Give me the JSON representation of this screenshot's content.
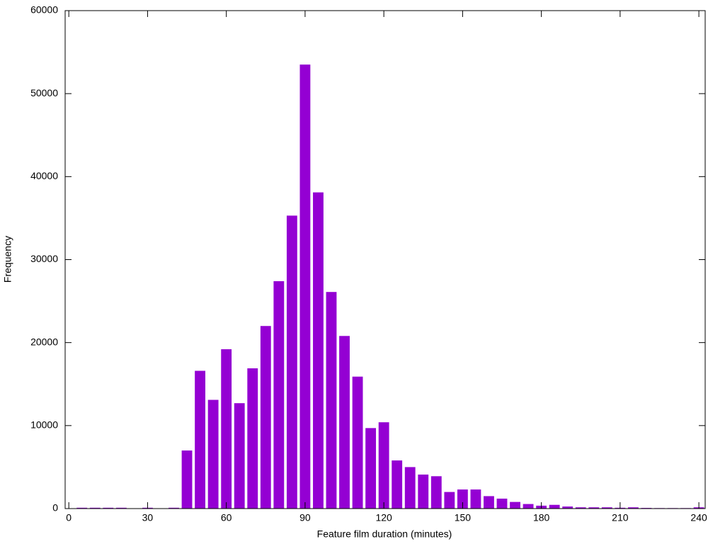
{
  "chart_data": {
    "type": "bar",
    "xlabel": "Feature film duration (minutes)",
    "ylabel": "Frequency",
    "x": [
      5,
      10,
      15,
      20,
      25,
      30,
      35,
      40,
      45,
      50,
      55,
      60,
      65,
      70,
      75,
      80,
      85,
      90,
      95,
      100,
      105,
      110,
      115,
      120,
      125,
      130,
      135,
      140,
      145,
      150,
      155,
      160,
      165,
      170,
      175,
      180,
      185,
      190,
      195,
      200,
      205,
      210,
      215,
      220,
      225,
      230,
      235,
      240
    ],
    "values": [
      100,
      100,
      100,
      100,
      0,
      100,
      0,
      100,
      7000,
      16600,
      13100,
      19200,
      12700,
      16900,
      22000,
      27400,
      35300,
      53500,
      38100,
      26100,
      20800,
      15900,
      9700,
      10400,
      5800,
      5000,
      4100,
      3900,
      2000,
      2300,
      2300,
      1500,
      1200,
      800,
      550,
      350,
      450,
      250,
      150,
      150,
      150,
      100,
      150,
      80,
      60,
      60,
      60,
      150
    ],
    "color": "#9400d3",
    "xlim": [
      -1.4,
      242.4
    ],
    "xticks": [
      0,
      30,
      60,
      90,
      120,
      150,
      180,
      210,
      240
    ],
    "ylim": [
      0,
      60000
    ],
    "yticks": [
      0,
      10000,
      20000,
      30000,
      40000,
      50000,
      60000
    ],
    "grid": false
  }
}
